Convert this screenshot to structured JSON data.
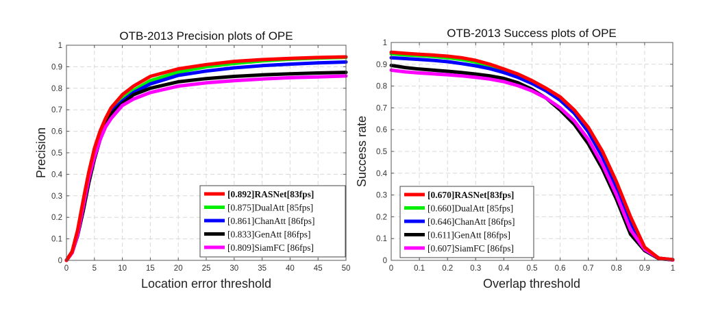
{
  "chart_data": [
    {
      "type": "line",
      "title": "OTB-2013  Precision plots of OPE",
      "xlabel": "Location error threshold",
      "ylabel": "Precision",
      "xlim": [
        0,
        50
      ],
      "ylim": [
        0,
        1
      ],
      "xticks": [
        0,
        5,
        10,
        15,
        20,
        25,
        30,
        35,
        40,
        45,
        50
      ],
      "yticks": [
        0,
        0.1,
        0.2,
        0.3,
        0.4,
        0.5,
        0.6,
        0.7,
        0.8,
        0.9,
        1
      ],
      "grid": true,
      "legend_position": "bottom-right",
      "x": [
        0,
        1,
        2,
        3,
        4,
        5,
        6,
        7,
        8,
        10,
        12,
        15,
        20,
        25,
        30,
        35,
        40,
        45,
        50
      ],
      "series": [
        {
          "name": "RASNet",
          "score": "0.892",
          "fps": "83fps",
          "bold": true,
          "color": "#ff0000",
          "values": [
            0,
            0.04,
            0.14,
            0.28,
            0.41,
            0.52,
            0.6,
            0.66,
            0.71,
            0.77,
            0.81,
            0.855,
            0.89,
            0.91,
            0.925,
            0.933,
            0.939,
            0.943,
            0.946
          ]
        },
        {
          "name": "DualAtt",
          "score": "0.875",
          "fps": "85fps",
          "bold": false,
          "color": "#00ee00",
          "values": [
            0,
            0.04,
            0.135,
            0.27,
            0.4,
            0.51,
            0.59,
            0.65,
            0.7,
            0.75,
            0.79,
            0.835,
            0.875,
            0.9,
            0.915,
            0.927,
            0.935,
            0.94,
            0.944
          ]
        },
        {
          "name": "ChanAtt",
          "score": "0.861",
          "fps": "86fps",
          "bold": false,
          "color": "#0000ff",
          "values": [
            0,
            0.04,
            0.13,
            0.26,
            0.39,
            0.5,
            0.58,
            0.64,
            0.69,
            0.74,
            0.78,
            0.82,
            0.86,
            0.88,
            0.895,
            0.905,
            0.912,
            0.918,
            0.922
          ]
        },
        {
          "name": "GenAtt",
          "score": "0.833",
          "fps": "86fps",
          "bold": false,
          "color": "#000000",
          "values": [
            0,
            0.035,
            0.115,
            0.23,
            0.36,
            0.47,
            0.56,
            0.63,
            0.68,
            0.73,
            0.77,
            0.8,
            0.83,
            0.845,
            0.855,
            0.862,
            0.867,
            0.871,
            0.874
          ]
        },
        {
          "name": "SiamFC",
          "score": "0.809",
          "fps": "86fps",
          "bold": false,
          "color": "#ff00ff",
          "values": [
            0,
            0.035,
            0.12,
            0.25,
            0.38,
            0.48,
            0.56,
            0.62,
            0.66,
            0.72,
            0.75,
            0.78,
            0.81,
            0.825,
            0.835,
            0.843,
            0.849,
            0.853,
            0.857
          ]
        }
      ]
    },
    {
      "type": "line",
      "title": "OTB-2013  Success plots of OPE",
      "xlabel": "Overlap threshold",
      "ylabel": "Success rate",
      "xlim": [
        0,
        1
      ],
      "ylim": [
        0,
        1
      ],
      "xticks": [
        0,
        0.1,
        0.2,
        0.3,
        0.4,
        0.5,
        0.6,
        0.7,
        0.8,
        0.9,
        1
      ],
      "yticks": [
        0,
        0.1,
        0.2,
        0.3,
        0.4,
        0.5,
        0.6,
        0.7,
        0.8,
        0.9,
        1
      ],
      "grid": true,
      "legend_position": "bottom-left",
      "x": [
        0,
        0.05,
        0.1,
        0.15,
        0.2,
        0.25,
        0.3,
        0.35,
        0.4,
        0.45,
        0.5,
        0.55,
        0.6,
        0.65,
        0.7,
        0.75,
        0.8,
        0.85,
        0.9,
        0.95,
        1
      ],
      "series": [
        {
          "name": "RASNet",
          "score": "0.670",
          "fps": "83fps",
          "bold": true,
          "color": "#ff0000",
          "values": [
            0.955,
            0.95,
            0.946,
            0.942,
            0.937,
            0.93,
            0.918,
            0.9,
            0.878,
            0.855,
            0.825,
            0.79,
            0.75,
            0.69,
            0.61,
            0.5,
            0.36,
            0.2,
            0.06,
            0.01,
            0.003
          ]
        },
        {
          "name": "DualAtt",
          "score": "0.660",
          "fps": "85fps",
          "bold": false,
          "color": "#00ee00",
          "values": [
            0.948,
            0.943,
            0.94,
            0.936,
            0.93,
            0.922,
            0.91,
            0.892,
            0.87,
            0.845,
            0.818,
            0.785,
            0.745,
            0.685,
            0.6,
            0.49,
            0.35,
            0.19,
            0.055,
            0.01,
            0.003
          ]
        },
        {
          "name": "ChanAtt",
          "score": "0.646",
          "fps": "86fps",
          "bold": false,
          "color": "#0000ff",
          "values": [
            0.93,
            0.926,
            0.922,
            0.918,
            0.912,
            0.903,
            0.893,
            0.88,
            0.862,
            0.84,
            0.812,
            0.778,
            0.735,
            0.675,
            0.59,
            0.475,
            0.335,
            0.175,
            0.055,
            0.01,
            0.003
          ]
        },
        {
          "name": "GenAtt",
          "score": "0.611",
          "fps": "86fps",
          "bold": false,
          "color": "#000000",
          "values": [
            0.895,
            0.885,
            0.878,
            0.873,
            0.868,
            0.862,
            0.855,
            0.847,
            0.835,
            0.815,
            0.785,
            0.745,
            0.69,
            0.625,
            0.535,
            0.42,
            0.28,
            0.12,
            0.045,
            0.008,
            0.002
          ]
        },
        {
          "name": "SiamFC",
          "score": "0.607",
          "fps": "86fps",
          "bold": false,
          "color": "#ff00ff",
          "values": [
            0.873,
            0.865,
            0.86,
            0.856,
            0.852,
            0.847,
            0.84,
            0.832,
            0.82,
            0.802,
            0.778,
            0.745,
            0.7,
            0.64,
            0.555,
            0.44,
            0.3,
            0.14,
            0.05,
            0.01,
            0.002
          ]
        }
      ]
    }
  ]
}
